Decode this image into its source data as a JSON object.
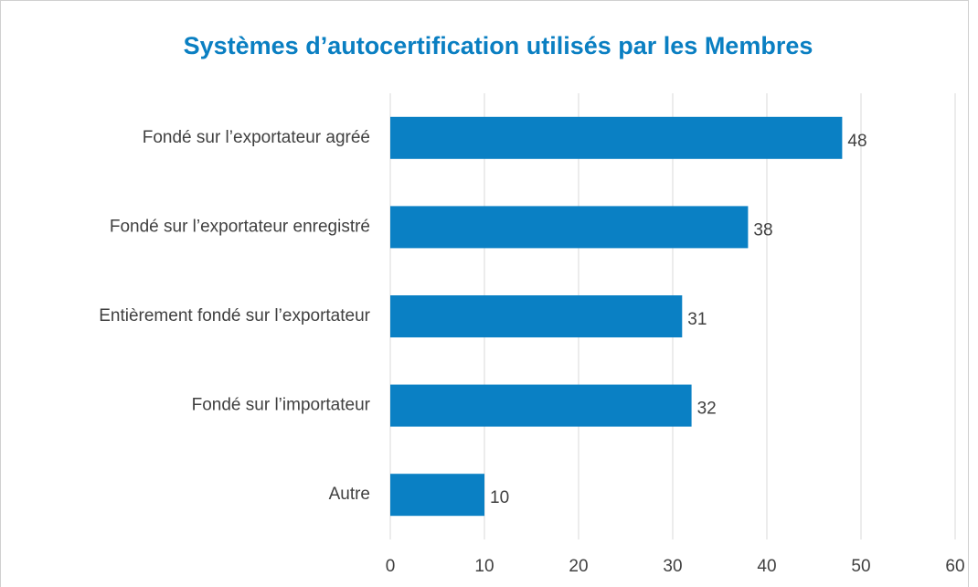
{
  "chart_data": {
    "type": "bar",
    "orientation": "horizontal",
    "title": "Systèmes d’autocertification utilisés par les Membres",
    "categories": [
      "Fondé sur l’exportateur agréé",
      "Fondé sur l’exportateur enregistré",
      "Entièrement fondé sur l’exportateur",
      "Fondé sur l’importateur",
      "Autre"
    ],
    "values": [
      48,
      38,
      31,
      32,
      10
    ],
    "color": "#0a80c4",
    "xlim": [
      0,
      60
    ],
    "xticks": [
      0,
      10,
      20,
      30,
      40,
      50,
      60
    ],
    "grid": true
  }
}
